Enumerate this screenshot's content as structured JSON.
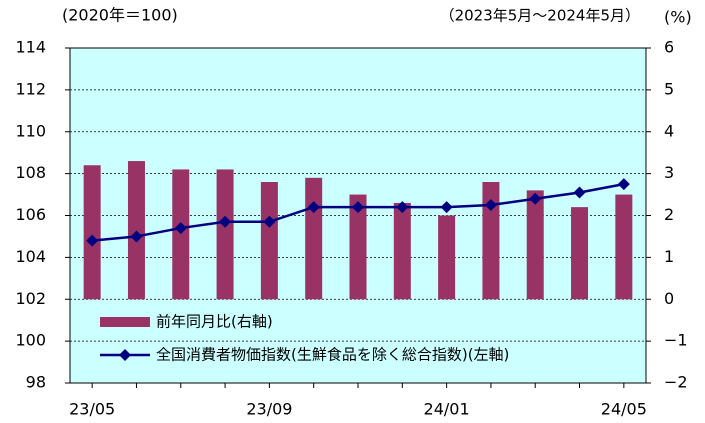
{
  "chart_data": {
    "type": "bar_line",
    "left_axis_label": "(2020年＝100)",
    "period_label": "（2023年5月～2024年5月）",
    "right_axis_label": "(%)",
    "categories": [
      "23/05",
      null,
      null,
      null,
      "23/09",
      null,
      null,
      null,
      "24/01",
      null,
      null,
      null,
      "24/05"
    ],
    "series": [
      {
        "name": "前年同月比(右軸)",
        "type": "bar",
        "axis": "y2",
        "color": "#993366",
        "values": [
          3.2,
          3.3,
          3.1,
          3.1,
          2.8,
          2.9,
          2.5,
          2.3,
          2.0,
          2.8,
          2.6,
          2.2,
          2.5
        ]
      },
      {
        "name": "全国消費者物価指数(生鮮食品を除く総合指数)(左軸)",
        "type": "line",
        "axis": "y",
        "color": "#000080",
        "values": [
          104.8,
          105.0,
          105.4,
          105.7,
          105.7,
          106.4,
          106.4,
          106.4,
          106.4,
          106.5,
          106.8,
          107.1,
          107.5
        ]
      }
    ],
    "ylim": [
      98,
      114
    ],
    "yticks": [
      98,
      100,
      102,
      104,
      106,
      108,
      110,
      112,
      114
    ],
    "y2lim": [
      -2,
      6
    ],
    "y2ticks": [
      {
        "value": -2,
        "label": "−2"
      },
      {
        "value": -1,
        "label": "−1"
      },
      0,
      1,
      2,
      3,
      4,
      5,
      6
    ],
    "negative_tick_color": "#ff0000",
    "plot_background": "#ccffff",
    "grid": true
  }
}
